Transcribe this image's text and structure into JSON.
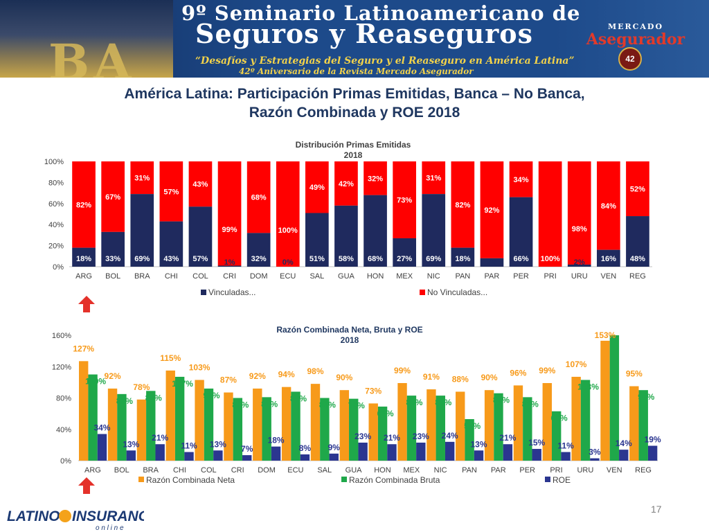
{
  "banner": {
    "title_line1": "9º Seminario Latinoamericano de",
    "title_line2": "Seguros y Reaseguros",
    "subtitle_line1": "“Desafíos y Estrategias del Seguro y el Reaseguro en América Latina”",
    "subtitle_line2": "42º Aniversario de la Revista Mercado Asegurador",
    "city_letters": "BA",
    "logo_top": "MERCADO",
    "logo_main": "Asegurador",
    "seal_text": "42"
  },
  "slide_title_line1": "América Latina: Participación Primas Emitidas, Banca – No Banca,",
  "slide_title_line2": "Razón Combinada y ROE 2018",
  "footer": {
    "logo_text_1": "LATINO",
    "logo_text_2": "INSURANCE",
    "logo_text_3": "o n  l i n e",
    "page_number": "17"
  },
  "colors": {
    "navy": "#1f2a5e",
    "red": "#ff0000",
    "orange": "#f79a1a",
    "green": "#1fa84a",
    "roe_blue": "#2b3690",
    "arrow_red": "#e4312a"
  },
  "chart_data": [
    {
      "type": "bar",
      "stacked": true,
      "title": "Distribución Primas Emitidas",
      "subtitle": "2018",
      "categories": [
        "ARG",
        "BOL",
        "BRA",
        "CHI",
        "COL",
        "CRI",
        "DOM",
        "ECU",
        "SAL",
        "GUA",
        "HON",
        "MEX",
        "NIC",
        "PAN",
        "PAR",
        "PER",
        "PRI",
        "URU",
        "VEN",
        "REG"
      ],
      "series": [
        {
          "name": "Vinculadas...",
          "color": "#1f2a5e",
          "values": [
            18,
            33,
            69,
            43,
            57,
            1,
            32,
            0,
            51,
            58,
            68,
            27,
            69,
            18,
            8,
            66,
            0,
            2,
            16,
            48
          ]
        },
        {
          "name": "No Vinculadas...",
          "color": "#ff0000",
          "values": [
            82,
            67,
            31,
            57,
            43,
            99,
            68,
            100,
            49,
            42,
            32,
            73,
            31,
            82,
            92,
            34,
            100,
            98,
            84,
            52
          ]
        }
      ],
      "data_labels_bottom": [
        "18%",
        "33%",
        "69%",
        "43%",
        "57%",
        "1%",
        "32%",
        "0%",
        "51%",
        "58%",
        "68%",
        "27%",
        "69%",
        "18%",
        "8%",
        "66%",
        "",
        "2%",
        "16%",
        "48%"
      ],
      "data_labels_top": [
        "82%",
        "67%",
        "31%",
        "57%",
        "43%",
        "99%",
        "68%",
        "100%",
        "49%",
        "42%",
        "32%",
        "73%",
        "31%",
        "82%",
        "92%",
        "34%",
        "100%",
        "98%",
        "84%",
        "52%"
      ],
      "y_ticks": [
        "0%",
        "20%",
        "40%",
        "60%",
        "80%",
        "100%"
      ],
      "ylim": [
        0,
        100
      ],
      "legend_position": "bottom"
    },
    {
      "type": "bar",
      "grouped": true,
      "title": "Razón Combinada Neta, Bruta y ROE",
      "subtitle": "2018",
      "categories": [
        "ARG",
        "BOL",
        "BRA",
        "CHI",
        "COL",
        "CRI",
        "DOM",
        "ECU",
        "SAL",
        "GUA",
        "HON",
        "MEX",
        "NIC",
        "PAN",
        "PAR",
        "PER",
        "PRI",
        "URU",
        "VEN",
        "REG"
      ],
      "series": [
        {
          "name": "Razón Combinada Neta",
          "color": "#f79a1a",
          "values": [
            127,
            92,
            78,
            115,
            103,
            87,
            92,
            94,
            98,
            90,
            73,
            99,
            91,
            88,
            90,
            96,
            99,
            107,
            153,
            95
          ]
        },
        {
          "name": "Razón Combinada Bruta",
          "color": "#1fa84a",
          "values": [
            110,
            85,
            89,
            107,
            92,
            80,
            81,
            88,
            80,
            79,
            69,
            83,
            83,
            53,
            86,
            81,
            63,
            103,
            160,
            90
          ]
        },
        {
          "name": "ROE",
          "color": "#2b3690",
          "values": [
            34,
            13,
            21,
            11,
            13,
            7,
            18,
            8,
            9,
            23,
            21,
            23,
            24,
            13,
            21,
            15,
            11,
            3,
            14,
            19
          ]
        }
      ],
      "data_labels": [
        [
          "127%",
          "92%",
          "78%",
          "115%",
          "103%",
          "87%",
          "92%",
          "94%",
          "98%",
          "90%",
          "73%",
          "99%",
          "91%",
          "88%",
          "90%",
          "96%",
          "99%",
          "107%",
          "153%",
          "95%"
        ],
        [
          "110%",
          "85%",
          "89%",
          "107%",
          "92%",
          "80%",
          "81%",
          "88%",
          "80%",
          "79%",
          "69%",
          "83%",
          "83%",
          "53%",
          "86%",
          "81%",
          "63%",
          "103%",
          "",
          "90%"
        ],
        [
          "34%",
          "13%",
          "21%",
          "11%",
          "13%",
          "7%",
          "18%",
          "8%",
          "9%",
          "23%",
          "21%",
          "23%",
          "24%",
          "13%",
          "21%",
          "15%",
          "11%",
          "3%",
          "14%",
          "19%"
        ]
      ],
      "y_ticks": [
        "0%",
        "40%",
        "80%",
        "120%",
        "160%"
      ],
      "ylim": [
        0,
        160
      ],
      "legend_position": "bottom"
    }
  ]
}
